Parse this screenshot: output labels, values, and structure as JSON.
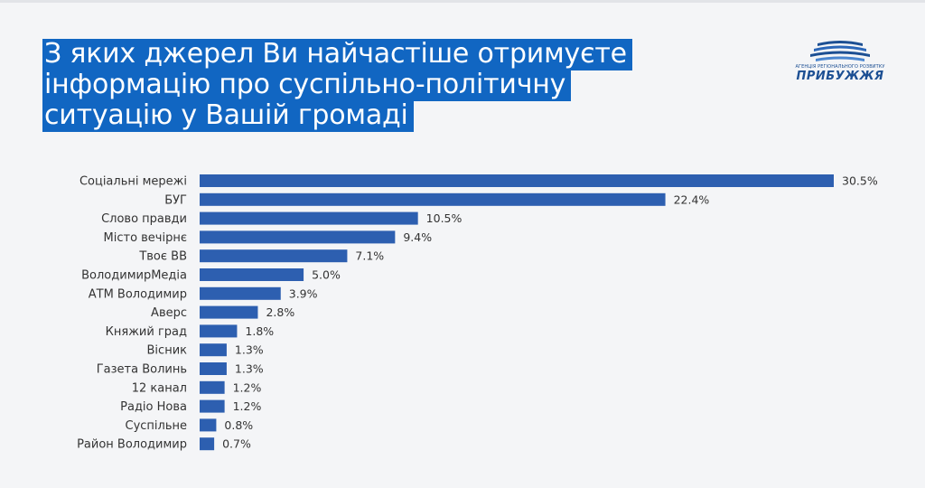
{
  "title_lines": [
    "З яких джерел Ви найчастіше отримуєте",
    "інформацію про суспільно-політичну",
    "ситуацію у Вашій громаді"
  ],
  "logo": {
    "subtitle": "АГЕНЦІЯ РЕГІОНАЛЬНОГО РОЗВИТКУ",
    "name": "ПРИБУЖЖЯ",
    "icon": "waves-logo-icon"
  },
  "colors": {
    "bar": "#2d5fb0",
    "title_bg": "#1166c2",
    "logo": "#1c4f93"
  },
  "chart_data": {
    "type": "bar",
    "orientation": "horizontal",
    "categories": [
      "Соціальні мережі",
      "БУГ",
      "Слово правди",
      "Місто вечірнє",
      "Твоє ВВ",
      "ВолодимирМедіа",
      "АТМ Володимир",
      "Аверс",
      "Княжий град",
      "Вісник",
      "Газета Волинь",
      "12 канал",
      "Радіо Нова",
      "Суспільне",
      "Район Володимир"
    ],
    "values": [
      30.5,
      22.4,
      10.5,
      9.4,
      7.1,
      5.0,
      3.9,
      2.8,
      1.8,
      1.3,
      1.3,
      1.2,
      1.2,
      0.8,
      0.7
    ],
    "value_labels": [
      "30.5%",
      "22.4%",
      "10.5%",
      "9.4%",
      "7.1%",
      "5.0%",
      "3.9%",
      "2.8%",
      "1.8%",
      "1.3%",
      "1.3%",
      "1.2%",
      "1.2%",
      "0.8%",
      "0.7%"
    ],
    "unit": "%",
    "xlim": [
      0,
      30.5
    ],
    "grid": false,
    "legend": "none"
  }
}
